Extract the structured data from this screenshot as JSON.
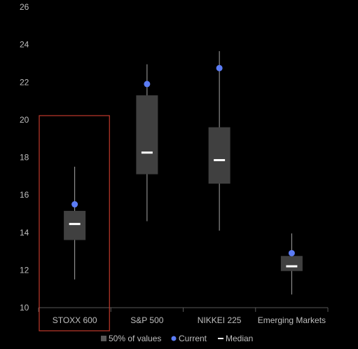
{
  "chart_data": {
    "type": "box",
    "title": "",
    "xlabel": "",
    "ylabel": "",
    "ylim": [
      10,
      26
    ],
    "yticks": [
      10,
      12,
      14,
      16,
      18,
      20,
      22,
      24,
      26
    ],
    "grid": false,
    "legend_position": "bottom",
    "categories": [
      "STOXX 600",
      "S&P 500",
      "NIKKEI 225",
      "Emerging Markets"
    ],
    "highlighted_category": "STOXX 600",
    "boxes": [
      {
        "category": "STOXX 600",
        "min": 11.5,
        "q1": 13.6,
        "median": 14.45,
        "q3": 15.15,
        "max": 17.5,
        "current": 15.5
      },
      {
        "category": "S&P 500",
        "min": 14.6,
        "q1": 17.1,
        "median": 18.25,
        "q3": 21.3,
        "max": 22.95,
        "current": 21.9
      },
      {
        "category": "NIKKEI 225",
        "min": 14.1,
        "q1": 16.6,
        "median": 17.85,
        "q3": 19.6,
        "max": 23.65,
        "current": 22.75
      },
      {
        "category": "Emerging Markets",
        "min": 10.7,
        "q1": 11.95,
        "median": 12.2,
        "q3": 12.75,
        "max": 13.95,
        "current": 12.9
      }
    ],
    "legend": [
      {
        "key": "box",
        "label": "50% of values"
      },
      {
        "key": "current",
        "label": "Current"
      },
      {
        "key": "median",
        "label": "Median"
      }
    ],
    "colors": {
      "background": "#000000",
      "box": "#404040",
      "whisker": "#a6a6a6",
      "median": "#ffffff",
      "current": "#5b7cf5",
      "axis": "#595959",
      "text": "#bfbfbf",
      "highlight": "#c0392b"
    }
  }
}
